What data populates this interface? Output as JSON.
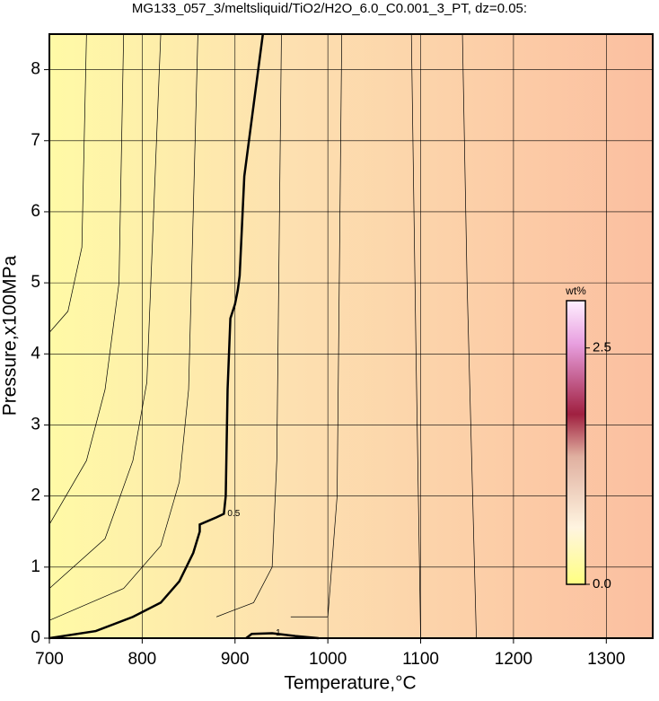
{
  "chart_data": {
    "type": "contour",
    "title": "MG133_057_3/meltsliquid/TiO2/H2O_6.0_C0.001_3_PT, dz=0.05:",
    "x_label": "Temperature,°C",
    "y_label": "Pressure,x100MPa",
    "xlim": [
      700,
      1350
    ],
    "xticks": [
      700,
      800,
      900,
      1000,
      1100,
      1200,
      1300
    ],
    "ylim": [
      0,
      8.5
    ],
    "yticks": [
      0,
      1,
      2,
      3,
      4,
      5,
      6,
      7,
      8
    ],
    "grid": true,
    "colorbar": {
      "label": "wt%",
      "lim": [
        0,
        3.0
      ],
      "ticks": [
        {
          "value": 0,
          "label": "0.0"
        },
        2.5
      ]
    },
    "contours": [
      {
        "level": 0.1,
        "x": [
          700,
          720,
          735,
          740
        ],
        "y": [
          4.3,
          4.6,
          5.5,
          8.5
        ]
      },
      {
        "level": 0.2,
        "x": [
          700,
          740,
          760,
          775,
          780
        ],
        "y": [
          1.6,
          2.5,
          3.5,
          5.0,
          8.5
        ]
      },
      {
        "level": 0.3,
        "x": [
          700,
          760,
          790,
          805,
          820
        ],
        "y": [
          0.7,
          1.4,
          2.5,
          3.6,
          8.5
        ]
      },
      {
        "level": 0.4,
        "x": [
          700,
          780,
          820,
          840,
          850,
          860
        ],
        "y": [
          0.25,
          0.7,
          1.3,
          2.2,
          3.5,
          8.5
        ]
      },
      {
        "level": 0.5,
        "label": "0.5",
        "x": [
          700,
          750,
          790,
          820,
          840,
          855,
          862,
          862,
          880,
          888,
          890,
          892,
          895,
          900,
          903,
          905,
          910,
          920,
          930
        ],
        "y": [
          0,
          0.1,
          0.3,
          0.5,
          0.8,
          1.2,
          1.5,
          1.6,
          1.7,
          1.75,
          2.0,
          3.5,
          4.5,
          4.7,
          4.9,
          5.1,
          6.5,
          7.5,
          8.5
        ]
      },
      {
        "level": 0.7,
        "x": [
          880,
          920,
          940,
          945,
          950
        ],
        "y": [
          0.3,
          0.5,
          1.0,
          2.5,
          8.5
        ]
      },
      {
        "level": 0.9,
        "x": [
          960,
          1000,
          1010,
          1015
        ],
        "y": [
          0.3,
          0.3,
          2,
          8.5
        ]
      },
      {
        "level": 1,
        "label": "1",
        "x": [
          912,
          918,
          940,
          965,
          990
        ],
        "y": [
          0,
          0.06,
          0.07,
          0.03,
          0
        ]
      },
      {
        "level": 1.2,
        "x": [
          1100,
          1095,
          1090
        ],
        "y": [
          0,
          4,
          8.5
        ]
      },
      {
        "level": 1.4,
        "x": [
          1160,
          1150,
          1145
        ],
        "y": [
          0,
          5,
          8.5
        ]
      }
    ]
  }
}
